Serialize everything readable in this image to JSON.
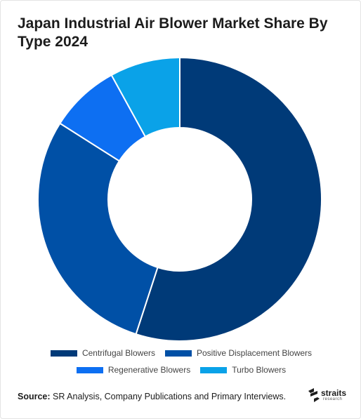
{
  "chart_data": {
    "type": "pie",
    "title": "Japan Industrial Air Blower Market Share By Type 2024",
    "donut": true,
    "categories": [
      "Centrifugal Blowers",
      "Positive Displacement Blowers",
      "Regenerative Blowers",
      "Turbo Blowers"
    ],
    "values": [
      55,
      29,
      8,
      8
    ],
    "colors": [
      "#003a78",
      "#0050a6",
      "#0d6ff2",
      "#0aa2e8"
    ],
    "legend": "bottom"
  },
  "source": {
    "label": "Source:",
    "text": " SR Analysis, Company Publications and Primary Interviews."
  },
  "logo": {
    "name": "straits",
    "sub": "research",
    "icon": "straits-research-logo-icon"
  }
}
